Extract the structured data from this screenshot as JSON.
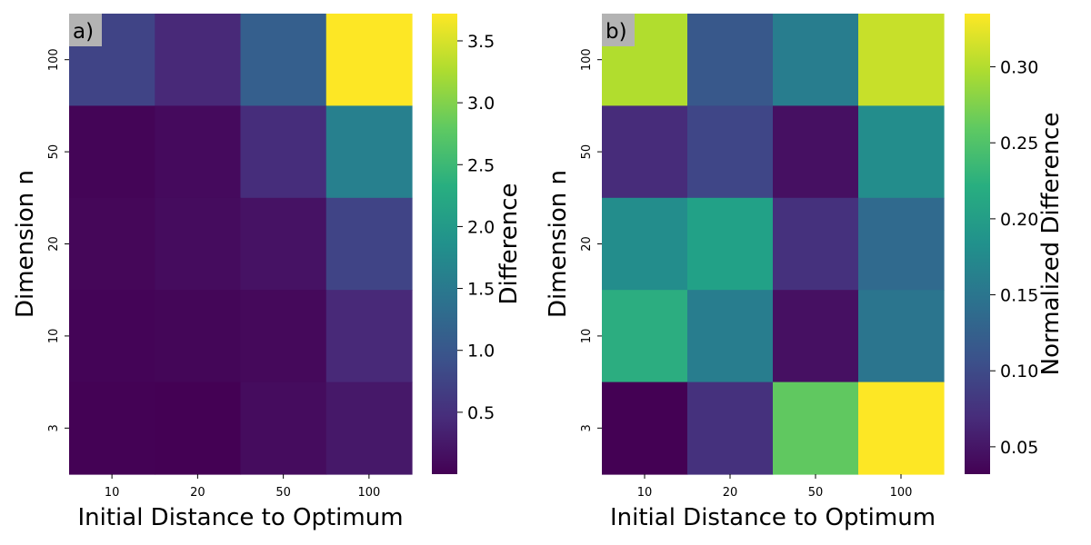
{
  "chart_data": [
    {
      "type": "heatmap",
      "panel_label": "a)",
      "xlabel": "Initial Distance to Optimum",
      "ylabel": "Dimension n",
      "colorbar_label": "Difference",
      "x_categories": [
        "10",
        "20",
        "50",
        "100"
      ],
      "y_categories": [
        "100",
        "50",
        "20",
        "10",
        "3"
      ],
      "values": [
        [
          0.75,
          0.42,
          1.12,
          3.72
        ],
        [
          0.04,
          0.1,
          0.48,
          1.62
        ],
        [
          0.06,
          0.12,
          0.18,
          0.75
        ],
        [
          0.03,
          0.05,
          0.08,
          0.42
        ],
        [
          0.01,
          0.0,
          0.12,
          0.24
        ]
      ],
      "vmin": 0.0,
      "vmax": 3.72,
      "colorbar_ticks": [
        "0.5",
        "1.0",
        "1.5",
        "2.0",
        "2.5",
        "3.0",
        "3.5"
      ],
      "colormap": "viridis"
    },
    {
      "type": "heatmap",
      "panel_label": "b)",
      "xlabel": "Initial Distance to Optimum",
      "ylabel": "Dimension n",
      "colorbar_label": "Normalized Difference",
      "x_categories": [
        "10",
        "20",
        "50",
        "100"
      ],
      "y_categories": [
        "100",
        "50",
        "20",
        "10",
        "3"
      ],
      "values": [
        [
          0.3,
          0.115,
          0.16,
          0.31
        ],
        [
          0.07,
          0.095,
          0.045,
          0.18
        ],
        [
          0.18,
          0.205,
          0.075,
          0.135
        ],
        [
          0.22,
          0.16,
          0.045,
          0.15
        ],
        [
          0.032,
          0.075,
          0.26,
          0.335
        ]
      ],
      "vmin": 0.032,
      "vmax": 0.335,
      "colorbar_ticks": [
        "0.05",
        "0.10",
        "0.15",
        "0.20",
        "0.25",
        "0.30"
      ],
      "colormap": "viridis"
    }
  ]
}
